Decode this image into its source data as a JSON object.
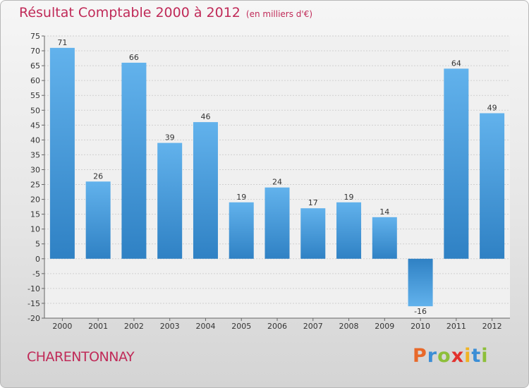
{
  "title": "Résultat Comptable 2000 à 2012",
  "subtitle": "(en milliers d'€)",
  "location": "CHARENTONNAY",
  "logo": {
    "text": "Proxiti",
    "letters": [
      {
        "ch": "P",
        "color": "#e8692a"
      },
      {
        "ch": "r",
        "color": "#3b8ed6"
      },
      {
        "ch": "o",
        "color": "#8dbf3a"
      },
      {
        "ch": "x",
        "color": "#e2312d"
      },
      {
        "ch": "i",
        "color": "#f0b323"
      },
      {
        "ch": "t",
        "color": "#3b8ed6"
      },
      {
        "ch": "i",
        "color": "#8dbf3a"
      }
    ]
  },
  "colors": {
    "bar_top": "#62b2ec",
    "bar_bottom": "#2f81c4",
    "title": "#c02a58"
  },
  "chart_data": {
    "type": "bar",
    "categories": [
      "2000",
      "2001",
      "2002",
      "2003",
      "2004",
      "2005",
      "2006",
      "2007",
      "2008",
      "2009",
      "2010",
      "2011",
      "2012"
    ],
    "values": [
      71,
      26,
      66,
      39,
      46,
      19,
      24,
      17,
      19,
      14,
      -16,
      64,
      49
    ],
    "ylim": [
      -20,
      75
    ],
    "yticks": [
      75,
      70,
      65,
      60,
      55,
      50,
      45,
      40,
      35,
      30,
      25,
      20,
      15,
      10,
      5,
      0,
      -5,
      -10,
      -15,
      -20
    ],
    "grid": true,
    "xlabel": "",
    "ylabel": ""
  }
}
